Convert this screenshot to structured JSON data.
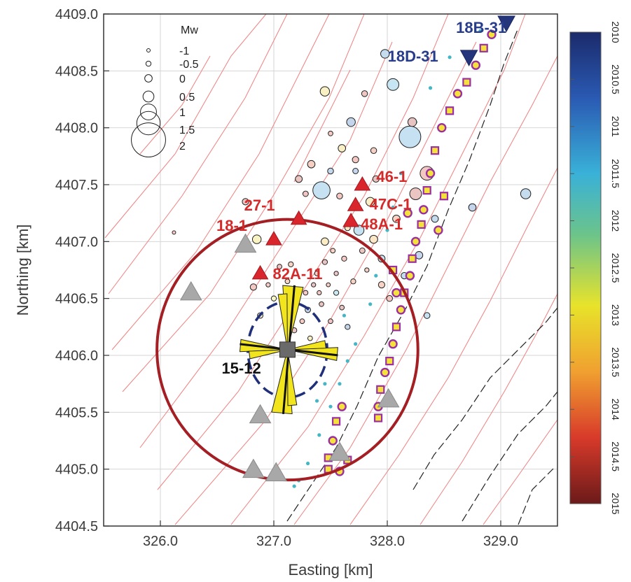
{
  "chart_data": {
    "type": "scatter",
    "title": "",
    "xlabel": "Easting [km]",
    "ylabel": "Northing [km]",
    "xlim": [
      325.5,
      329.5
    ],
    "ylim": [
      4404.5,
      4409.0
    ],
    "grid": true,
    "x_ticks": [
      "326.0",
      "327.0",
      "328.0",
      "329.0"
    ],
    "x_tick_values": [
      326.0,
      327.0,
      328.0,
      329.0
    ],
    "y_ticks": [
      "4404.5",
      "4405.0",
      "4405.5",
      "4406.0",
      "4406.5",
      "4407.0",
      "4407.5",
      "4408.0",
      "4408.5",
      "4409.0"
    ],
    "y_tick_values": [
      4404.5,
      4405.0,
      4405.5,
      4406.0,
      4406.5,
      4407.0,
      4407.5,
      4408.0,
      4408.5,
      4409.0
    ],
    "magnitude_legend": {
      "title": "Mw",
      "position": "top-left",
      "entries": [
        {
          "label": "-1",
          "mw": -1
        },
        {
          "label": "-0.5",
          "mw": -0.5
        },
        {
          "label": "0",
          "mw": 0
        },
        {
          "label": "0.5",
          "mw": 0.5
        },
        {
          "label": "1",
          "mw": 1
        },
        {
          "label": "1.5",
          "mw": 1.5
        },
        {
          "label": "2",
          "mw": 2
        }
      ]
    },
    "colorbar": {
      "label_orientation": "vertical",
      "ticks": [
        "2010",
        "2010.5",
        "2011",
        "2011.5",
        "2012",
        "2012.5",
        "2013",
        "2013.5",
        "2014",
        "2014.5",
        "2015"
      ],
      "tick_values": [
        2010,
        2010.5,
        2011,
        2011.5,
        2012,
        2012.5,
        2013,
        2013.5,
        2014,
        2014.5,
        2015
      ],
      "colormap": [
        "#1b2a6b",
        "#2a5ab3",
        "#39b1d8",
        "#6cc48a",
        "#e8e32a",
        "#f0a030",
        "#d83a2a",
        "#6b1a1a"
      ]
    },
    "injection_wells": [
      {
        "label": "18-1",
        "x": 327.0,
        "y": 4407.02
      },
      {
        "label": "27-1",
        "x": 327.22,
        "y": 4407.2
      },
      {
        "label": "46-1",
        "x": 327.78,
        "y": 4407.5
      },
      {
        "label": "47C-1",
        "x": 327.72,
        "y": 4407.32
      },
      {
        "label": "48A-1",
        "x": 327.68,
        "y": 4407.18
      },
      {
        "label": "82A-11",
        "x": 326.88,
        "y": 4406.72
      }
    ],
    "production_wells": [
      {
        "label": "18B-31",
        "x": 329.05,
        "y": 4408.92
      },
      {
        "label": "18D-31",
        "x": 328.72,
        "y": 4408.62
      }
    ],
    "monitoring_well": {
      "label": "15-12",
      "x": 327.12,
      "y": 4406.05
    },
    "stations": [
      {
        "x": 326.75,
        "y": 4406.98
      },
      {
        "x": 326.27,
        "y": 4406.56
      },
      {
        "x": 326.88,
        "y": 4405.48
      },
      {
        "x": 326.82,
        "y": 4405.0
      },
      {
        "x": 327.02,
        "y": 4404.97
      },
      {
        "x": 327.58,
        "y": 4405.15
      },
      {
        "x": 328.01,
        "y": 4405.62
      }
    ],
    "circle_radius_km": 1.15,
    "ellipse": {
      "rx_km": 0.35,
      "ry_km": 0.42
    },
    "seismicity": [
      {
        "x": 326.12,
        "y": 4407.08,
        "mw": -1.0,
        "t": 2014.2
      },
      {
        "x": 326.75,
        "y": 4407.35,
        "mw": -0.2,
        "t": 2014.5
      },
      {
        "x": 326.85,
        "y": 4407.02,
        "mw": 0.2,
        "t": 2013.0
      },
      {
        "x": 326.82,
        "y": 4406.6,
        "mw": -0.2,
        "t": 2014.3
      },
      {
        "x": 326.88,
        "y": 4406.35,
        "mw": -0.4,
        "t": 2013.2
      },
      {
        "x": 327.0,
        "y": 4406.5,
        "mw": -0.5,
        "t": 2012.8
      },
      {
        "x": 327.05,
        "y": 4406.78,
        "mw": -0.6,
        "t": 2014.4
      },
      {
        "x": 327.15,
        "y": 4406.8,
        "mw": -0.5,
        "t": 2014.0
      },
      {
        "x": 327.22,
        "y": 4407.55,
        "mw": -0.1,
        "t": 2014.5
      },
      {
        "x": 327.28,
        "y": 4406.55,
        "mw": -0.6,
        "t": 2014.2
      },
      {
        "x": 327.3,
        "y": 4406.4,
        "mw": -0.4,
        "t": 2010.7
      },
      {
        "x": 327.33,
        "y": 4407.68,
        "mw": 0.0,
        "t": 2014.1
      },
      {
        "x": 327.35,
        "y": 4406.62,
        "mw": -0.7,
        "t": 2014.5
      },
      {
        "x": 327.38,
        "y": 4406.72,
        "mw": -0.6,
        "t": 2014.0
      },
      {
        "x": 327.4,
        "y": 4406.55,
        "mw": -0.7,
        "t": 2014.3
      },
      {
        "x": 327.42,
        "y": 4407.45,
        "mw": 1.1,
        "t": 2011.2
      },
      {
        "x": 327.42,
        "y": 4406.45,
        "mw": -0.6,
        "t": 2014.5
      },
      {
        "x": 327.45,
        "y": 4406.82,
        "mw": -0.5,
        "t": 2014.6
      },
      {
        "x": 327.45,
        "y": 4408.32,
        "mw": 0.3,
        "t": 2013.1
      },
      {
        "x": 327.45,
        "y": 4407.0,
        "mw": 0.0,
        "t": 2013.3
      },
      {
        "x": 327.48,
        "y": 4406.62,
        "mw": -0.8,
        "t": 2014.1
      },
      {
        "x": 327.5,
        "y": 4407.95,
        "mw": -0.6,
        "t": 2014.2
      },
      {
        "x": 327.5,
        "y": 4407.62,
        "mw": -0.3,
        "t": 2010.9
      },
      {
        "x": 327.52,
        "y": 4406.92,
        "mw": -0.6,
        "t": 2014.0
      },
      {
        "x": 327.55,
        "y": 4406.55,
        "mw": -0.5,
        "t": 2011.5
      },
      {
        "x": 327.55,
        "y": 4406.72,
        "mw": -0.7,
        "t": 2014.4
      },
      {
        "x": 327.58,
        "y": 4407.4,
        "mw": -0.3,
        "t": 2014.3
      },
      {
        "x": 327.6,
        "y": 4407.82,
        "mw": 0.0,
        "t": 2013.2
      },
      {
        "x": 327.6,
        "y": 4406.42,
        "mw": -0.6,
        "t": 2014.6
      },
      {
        "x": 327.62,
        "y": 4406.85,
        "mw": -0.5,
        "t": 2014.2
      },
      {
        "x": 327.65,
        "y": 4407.12,
        "mw": -0.4,
        "t": 2013.4
      },
      {
        "x": 327.68,
        "y": 4408.05,
        "mw": 0.2,
        "t": 2010.8
      },
      {
        "x": 327.7,
        "y": 4406.65,
        "mw": -0.5,
        "t": 2014.0
      },
      {
        "x": 327.72,
        "y": 4407.72,
        "mw": -0.2,
        "t": 2014.3
      },
      {
        "x": 327.75,
        "y": 4407.1,
        "mw": 0.4,
        "t": 2011.2
      },
      {
        "x": 327.78,
        "y": 4406.92,
        "mw": -0.4,
        "t": 2014.5
      },
      {
        "x": 327.8,
        "y": 4408.3,
        "mw": -0.3,
        "t": 2014.4
      },
      {
        "x": 327.82,
        "y": 4406.75,
        "mw": -0.7,
        "t": 2014.1
      },
      {
        "x": 327.85,
        "y": 4407.35,
        "mw": 0.2,
        "t": 2013.2
      },
      {
        "x": 327.88,
        "y": 4407.02,
        "mw": 0.1,
        "t": 2013.5
      },
      {
        "x": 327.9,
        "y": 4407.55,
        "mw": -0.2,
        "t": 2014.6
      },
      {
        "x": 327.95,
        "y": 4406.85,
        "mw": -0.1,
        "t": 2011.3
      },
      {
        "x": 327.98,
        "y": 4408.65,
        "mw": 0.2,
        "t": 2011.0
      },
      {
        "x": 328.02,
        "y": 4406.5,
        "mw": -0.3,
        "t": 2014.3
      },
      {
        "x": 328.05,
        "y": 4408.38,
        "mw": 0.6,
        "t": 2011.3
      },
      {
        "x": 328.08,
        "y": 4407.2,
        "mw": 0.0,
        "t": 2014.0
      },
      {
        "x": 328.15,
        "y": 4406.7,
        "mw": -0.2,
        "t": 2011.1
      },
      {
        "x": 328.2,
        "y": 4407.92,
        "mw": 1.4,
        "t": 2011.2
      },
      {
        "x": 328.25,
        "y": 4407.42,
        "mw": 0.6,
        "t": 2014.5
      },
      {
        "x": 328.28,
        "y": 4406.88,
        "mw": 0.0,
        "t": 2010.9
      },
      {
        "x": 328.35,
        "y": 4407.6,
        "mw": 0.8,
        "t": 2014.3
      },
      {
        "x": 328.35,
        "y": 4406.35,
        "mw": -0.3,
        "t": 2011.2
      },
      {
        "x": 328.42,
        "y": 4407.2,
        "mw": -0.1,
        "t": 2011.0
      },
      {
        "x": 328.75,
        "y": 4407.3,
        "mw": 0.0,
        "t": 2010.8
      },
      {
        "x": 329.22,
        "y": 4407.42,
        "mw": 0.4,
        "t": 2011.0
      },
      {
        "x": 327.18,
        "y": 4406.22,
        "mw": -0.5,
        "t": 2014.5
      },
      {
        "x": 327.25,
        "y": 4406.3,
        "mw": -0.6,
        "t": 2014.2
      },
      {
        "x": 327.32,
        "y": 4406.15,
        "mw": -0.6,
        "t": 2013.1
      },
      {
        "x": 327.5,
        "y": 4406.3,
        "mw": -0.6,
        "t": 2014.4
      },
      {
        "x": 327.65,
        "y": 4406.25,
        "mw": -0.5,
        "t": 2010.8
      },
      {
        "x": 326.95,
        "y": 4406.62,
        "mw": -0.7,
        "t": 2014.2
      },
      {
        "x": 327.12,
        "y": 4406.65,
        "mw": -0.6,
        "t": 2014.0
      },
      {
        "x": 327.88,
        "y": 4407.8,
        "mw": -0.3,
        "t": 2014.1
      },
      {
        "x": 327.72,
        "y": 4407.62,
        "mw": -0.4,
        "t": 2010.9
      },
      {
        "x": 327.28,
        "y": 4407.42,
        "mw": -0.4,
        "t": 2014.4
      },
      {
        "x": 327.95,
        "y": 4406.62,
        "mw": -0.2,
        "t": 2014.0
      },
      {
        "x": 328.22,
        "y": 4408.05,
        "mw": 0.2,
        "t": 2014.6
      }
    ],
    "picks": [
      {
        "x": 327.92,
        "y": 4405.45,
        "t": 2014.2
      },
      {
        "x": 327.92,
        "y": 4405.55,
        "t": 2014.2
      },
      {
        "x": 327.94,
        "y": 4405.7,
        "t": 2014.2
      },
      {
        "x": 327.98,
        "y": 4405.85,
        "t": 2013.0
      },
      {
        "x": 328.02,
        "y": 4405.95,
        "t": 2014.2
      },
      {
        "x": 328.05,
        "y": 4406.1,
        "t": 2013.0
      },
      {
        "x": 328.08,
        "y": 4406.25,
        "t": 2014.2
      },
      {
        "x": 328.12,
        "y": 4406.4,
        "t": 2013.0
      },
      {
        "x": 328.15,
        "y": 4406.55,
        "t": 2014.2
      },
      {
        "x": 328.2,
        "y": 4406.7,
        "t": 2013.0
      },
      {
        "x": 328.22,
        "y": 4406.85,
        "t": 2014.2
      },
      {
        "x": 328.25,
        "y": 4407.0,
        "t": 2013.0
      },
      {
        "x": 328.3,
        "y": 4407.15,
        "t": 2014.2
      },
      {
        "x": 328.32,
        "y": 4407.28,
        "t": 2013.0
      },
      {
        "x": 328.35,
        "y": 4407.45,
        "t": 2014.2
      },
      {
        "x": 328.38,
        "y": 4407.6,
        "t": 2013.0
      },
      {
        "x": 328.42,
        "y": 4407.8,
        "t": 2014.2
      },
      {
        "x": 328.48,
        "y": 4408.0,
        "t": 2014.2
      },
      {
        "x": 328.55,
        "y": 4408.15,
        "t": 2014.2
      },
      {
        "x": 328.62,
        "y": 4408.3,
        "t": 2014.2
      },
      {
        "x": 328.7,
        "y": 4408.4,
        "t": 2014.2
      },
      {
        "x": 328.78,
        "y": 4408.55,
        "t": 2014.2
      },
      {
        "x": 328.85,
        "y": 4408.7,
        "t": 2014.2
      },
      {
        "x": 328.92,
        "y": 4408.82,
        "t": 2014.2
      },
      {
        "x": 327.48,
        "y": 4405.1,
        "t": 2014.2
      },
      {
        "x": 327.52,
        "y": 4405.25,
        "t": 2014.2
      },
      {
        "x": 327.55,
        "y": 4405.42,
        "t": 2014.2
      },
      {
        "x": 327.6,
        "y": 4405.55,
        "t": 2014.2
      },
      {
        "x": 327.48,
        "y": 4405.0,
        "t": 2014.2
      },
      {
        "x": 327.58,
        "y": 4404.98,
        "t": 2014.2
      },
      {
        "x": 327.65,
        "y": 4405.08,
        "t": 2014.2
      },
      {
        "x": 328.08,
        "y": 4406.55,
        "t": 2014.2
      },
      {
        "x": 328.05,
        "y": 4406.75,
        "t": 2014.2
      },
      {
        "x": 328.18,
        "y": 4407.25,
        "t": 2014.2
      },
      {
        "x": 328.5,
        "y": 4407.4,
        "t": 2014.2
      },
      {
        "x": 328.45,
        "y": 4407.1,
        "t": 2014.2
      }
    ],
    "streaks": [
      {
        "x": 327.22,
        "y": 4404.9,
        "t": 2011.6
      },
      {
        "x": 327.18,
        "y": 4404.85,
        "t": 2011.6
      },
      {
        "x": 327.3,
        "y": 4405.05,
        "t": 2011.6
      },
      {
        "x": 327.4,
        "y": 4405.3,
        "t": 2011.6
      },
      {
        "x": 327.5,
        "y": 4405.55,
        "t": 2011.6
      },
      {
        "x": 327.58,
        "y": 4405.75,
        "t": 2011.6
      },
      {
        "x": 327.65,
        "y": 4405.95,
        "t": 2011.6
      },
      {
        "x": 327.72,
        "y": 4406.1,
        "t": 2011.6
      },
      {
        "x": 327.85,
        "y": 4406.45,
        "t": 2011.6
      },
      {
        "x": 327.9,
        "y": 4406.7,
        "t": 2011.6
      },
      {
        "x": 328.0,
        "y": 4407.1,
        "t": 2011.6
      },
      {
        "x": 328.05,
        "y": 4407.3,
        "t": 2011.6
      },
      {
        "x": 328.12,
        "y": 4407.6,
        "t": 2011.6
      },
      {
        "x": 328.18,
        "y": 4407.85,
        "t": 2011.6
      },
      {
        "x": 328.25,
        "y": 4408.05,
        "t": 2011.6
      },
      {
        "x": 328.38,
        "y": 4408.35,
        "t": 2011.6
      },
      {
        "x": 328.55,
        "y": 4408.62,
        "t": 2011.6
      },
      {
        "x": 328.82,
        "y": 4408.85,
        "t": 2011.6
      },
      {
        "x": 329.05,
        "y": 4408.95,
        "t": 2011.6
      },
      {
        "x": 327.45,
        "y": 4405.75,
        "t": 2011.6
      },
      {
        "x": 327.38,
        "y": 4405.6,
        "t": 2011.6
      },
      {
        "x": 327.62,
        "y": 4406.35,
        "t": 2011.6
      }
    ]
  }
}
